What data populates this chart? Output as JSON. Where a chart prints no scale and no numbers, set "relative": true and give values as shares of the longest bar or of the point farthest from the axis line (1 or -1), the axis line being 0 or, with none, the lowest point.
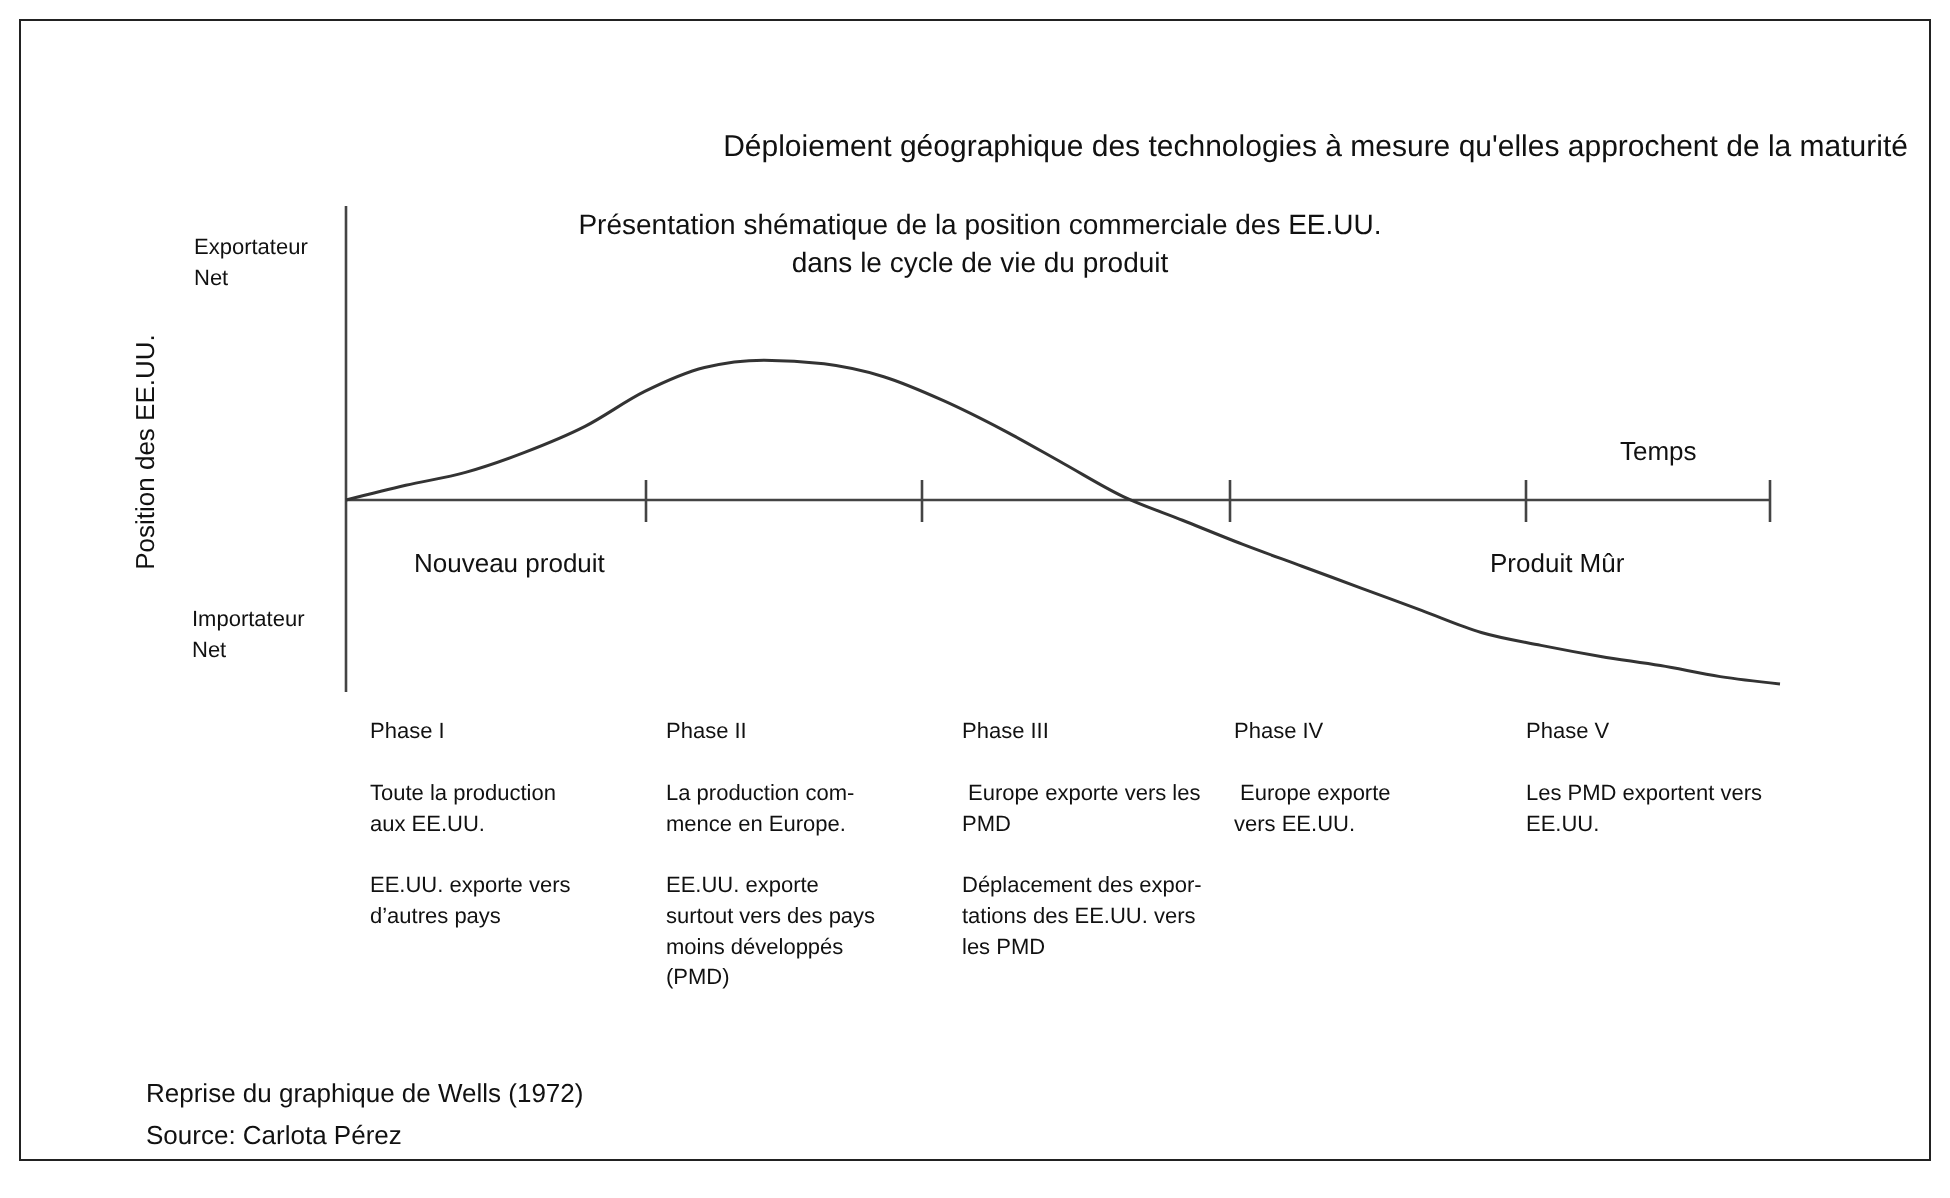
{
  "chart_data": {
    "type": "line",
    "relative": true,
    "title": "Déploiement géographique des technologies à mesure qu'elles approchent de la maturité",
    "subtitle": "Présentation shématique de la position commerciale des EE.UU.\ndans le cycle de vie du produit",
    "categories": [
      null,
      null,
      null,
      null,
      null,
      null,
      null,
      null,
      null,
      null,
      null,
      null,
      null,
      null,
      null,
      null,
      null,
      null,
      null,
      null,
      null,
      null,
      null,
      null,
      null
    ],
    "series": [
      {
        "color": "#333333",
        "values": [
          0,
          0.08,
          0.15,
          0.26,
          0.4,
          0.59,
          0.72,
          0.76,
          0.74,
          0.67,
          0.54,
          0.38,
          0.2,
          0.02,
          -0.11,
          -0.24,
          -0.36,
          -0.48,
          -0.6,
          -0.72,
          -0.79,
          -0.85,
          -0.9,
          -0.96,
          -1
        ]
      }
    ],
    "marker": "none",
    "line_style": "solid",
    "annotations": [
      "Exportateur\nNet",
      "Importateur\nNet",
      "Temps",
      "Nouveau produit",
      "Produit Mûr",
      "Phase I",
      "Phase II",
      "Phase III",
      "Phase IV",
      "Phase V",
      "Toute la production\naux EE.UU.",
      "La production com-\nmence en Europe.",
      " Europe exporte vers les\nPMD",
      " Europe exporte\nvers EE.UU.",
      "Les PMD exportent vers\nEE.UU.",
      "EE.UU. exporte vers\nd’autres pays",
      "EE.UU. exporte\nsurtout vers des pays\nmoins développés\n(PMD)",
      "Déplacement des expor-\ntations des EE.UU. vers\nles PMD",
      "Reprise du graphique de Wells (1972)",
      "Source: Carlota Pérez",
      "Position des EE.UU."
    ]
  }
}
